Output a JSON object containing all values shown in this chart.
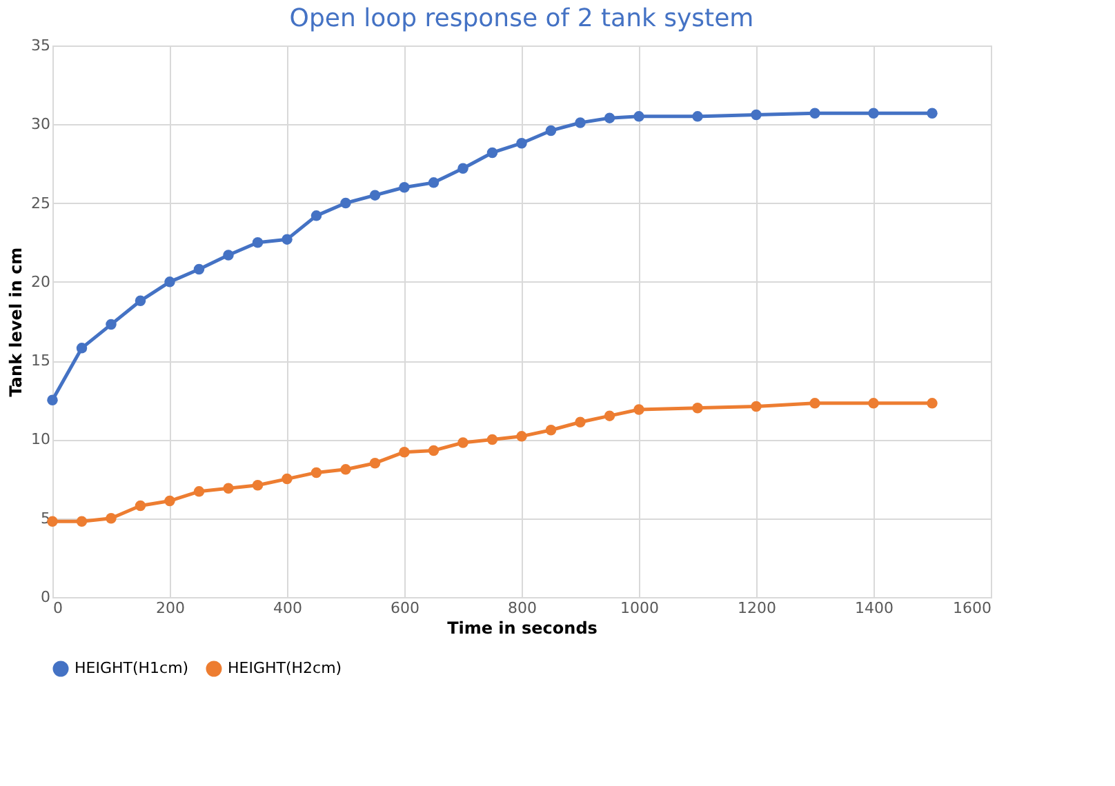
{
  "chart_data": {
    "type": "line",
    "title": "Open loop response of 2 tank system",
    "xlabel": "Time in seconds",
    "ylabel": "Tank level in cm",
    "x": [
      0,
      50,
      100,
      150,
      200,
      250,
      300,
      350,
      400,
      450,
      500,
      550,
      600,
      650,
      700,
      750,
      800,
      850,
      900,
      950,
      1000,
      1100,
      1200,
      1300,
      1400,
      1500
    ],
    "series": [
      {
        "name": "HEIGHT(H1cm)",
        "color": "#4472c4",
        "values": [
          12.5,
          15.8,
          17.3,
          18.8,
          20,
          20.8,
          21.7,
          22.5,
          22.7,
          24.2,
          25,
          25.5,
          26,
          26.3,
          27.2,
          28.2,
          28.8,
          29.6,
          30.1,
          30.4,
          30.5,
          30.5,
          30.6,
          30.7,
          30.7,
          30.7
        ]
      },
      {
        "name": "HEIGHT(H2cm)",
        "color": "#ed7d31",
        "values": [
          4.8,
          4.8,
          5.0,
          5.8,
          6.1,
          6.7,
          6.9,
          7.1,
          7.5,
          7.9,
          8.1,
          8.5,
          9.2,
          9.3,
          9.8,
          10,
          10.2,
          10.6,
          11.1,
          11.5,
          11.9,
          12.0,
          12.1,
          12.3,
          12.3,
          12.3
        ]
      }
    ],
    "xlim": [
      0,
      1600
    ],
    "xticks": [
      0,
      200,
      400,
      600,
      800,
      1000,
      1200,
      1400,
      1600
    ],
    "ylim": [
      0,
      35
    ],
    "yticks": [
      0,
      5,
      10,
      15,
      20,
      25,
      30,
      35
    ],
    "grid": true,
    "legend": "bottom",
    "marker": "circle",
    "line_style": "solid"
  }
}
